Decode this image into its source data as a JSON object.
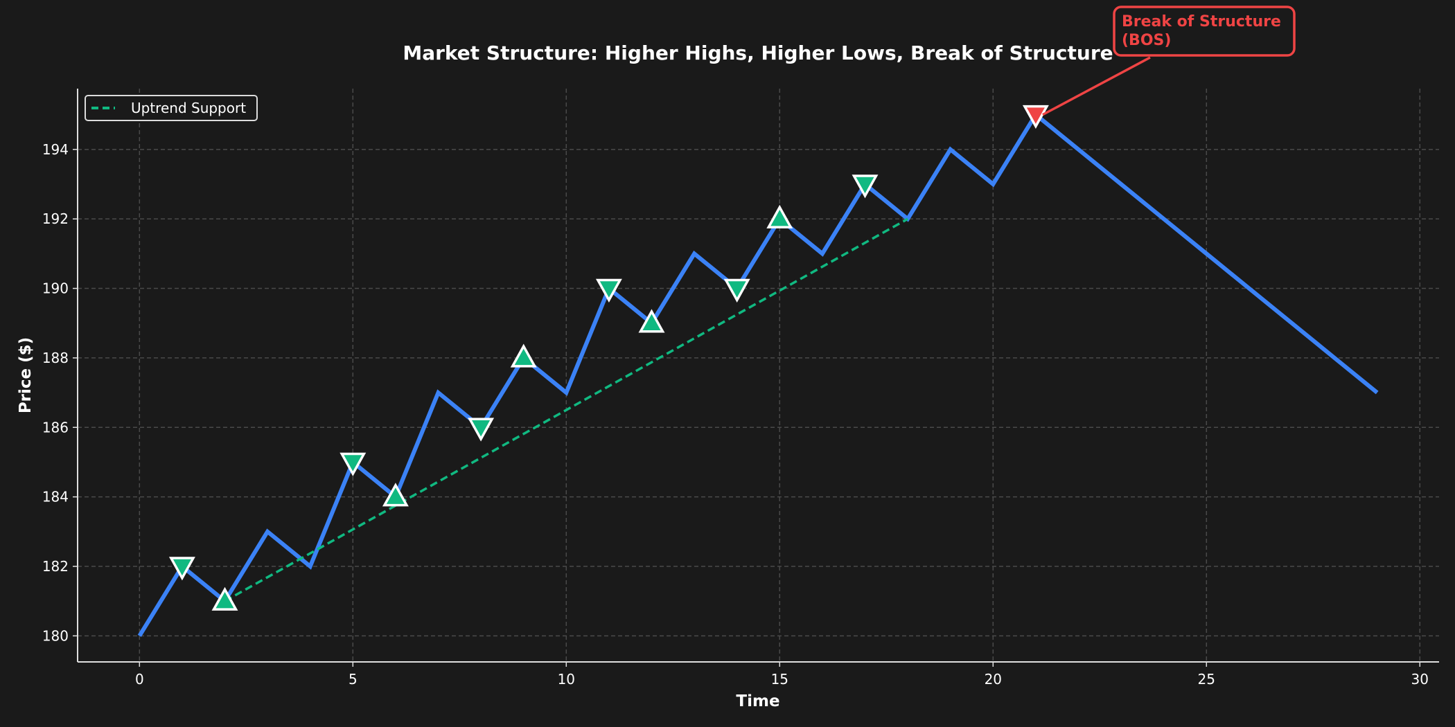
{
  "chart_data": {
    "type": "line",
    "title": "Market Structure: Higher Highs, Higher Lows, Break of Structure",
    "xlabel": "Time",
    "ylabel": "Price ($)",
    "xlim": [
      -1.45,
      30.45
    ],
    "ylim": [
      179.25,
      195.75
    ],
    "xticks": [
      0,
      5,
      10,
      15,
      20,
      25,
      30
    ],
    "yticks": [
      180,
      182,
      184,
      186,
      188,
      190,
      192,
      194
    ],
    "grid": true,
    "legend": {
      "position": "top-left",
      "entries": [
        "Uptrend Support"
      ]
    },
    "series": [
      {
        "x": [
          0,
          1,
          2,
          3,
          4,
          5,
          6,
          7,
          8,
          9,
          10,
          11,
          12,
          13,
          14,
          15,
          16,
          17,
          18,
          19,
          20,
          21,
          22,
          23,
          24,
          25,
          26,
          27,
          28,
          29
        ],
        "y": [
          180,
          182,
          181,
          183,
          182,
          185,
          184,
          187,
          186,
          188,
          187,
          190,
          189,
          191,
          190,
          192,
          191,
          193,
          192,
          194,
          193,
          195,
          194,
          193,
          192,
          191,
          190,
          189,
          188,
          187
        ],
        "color": "#3b82f6"
      },
      {
        "name": "Uptrend Support",
        "x": [
          2,
          18
        ],
        "y": [
          181,
          192
        ],
        "color": "#10b981",
        "style": "dashed"
      }
    ],
    "markers": {
      "down_triangles": {
        "x": [
          1,
          5,
          8,
          11,
          14,
          17
        ],
        "y": [
          182,
          185,
          186,
          190,
          190,
          193
        ],
        "color": "#10b981"
      },
      "up_triangles": {
        "x": [
          2,
          6,
          9,
          12,
          15
        ],
        "y": [
          181,
          184,
          188,
          189,
          192
        ],
        "color": "#10b981"
      },
      "bos": {
        "x": 21,
        "y": 195,
        "color": "#ef4444"
      }
    },
    "annotation": {
      "text_line1": "Break of Structure",
      "text_line2": "(BOS)",
      "x": 21,
      "y": 195,
      "color": "#ef4444"
    }
  },
  "colors": {
    "background": "#1a1a1a",
    "grid": "#4a4a4a",
    "axis": "#e0e0e0",
    "text": "#ffffff"
  }
}
